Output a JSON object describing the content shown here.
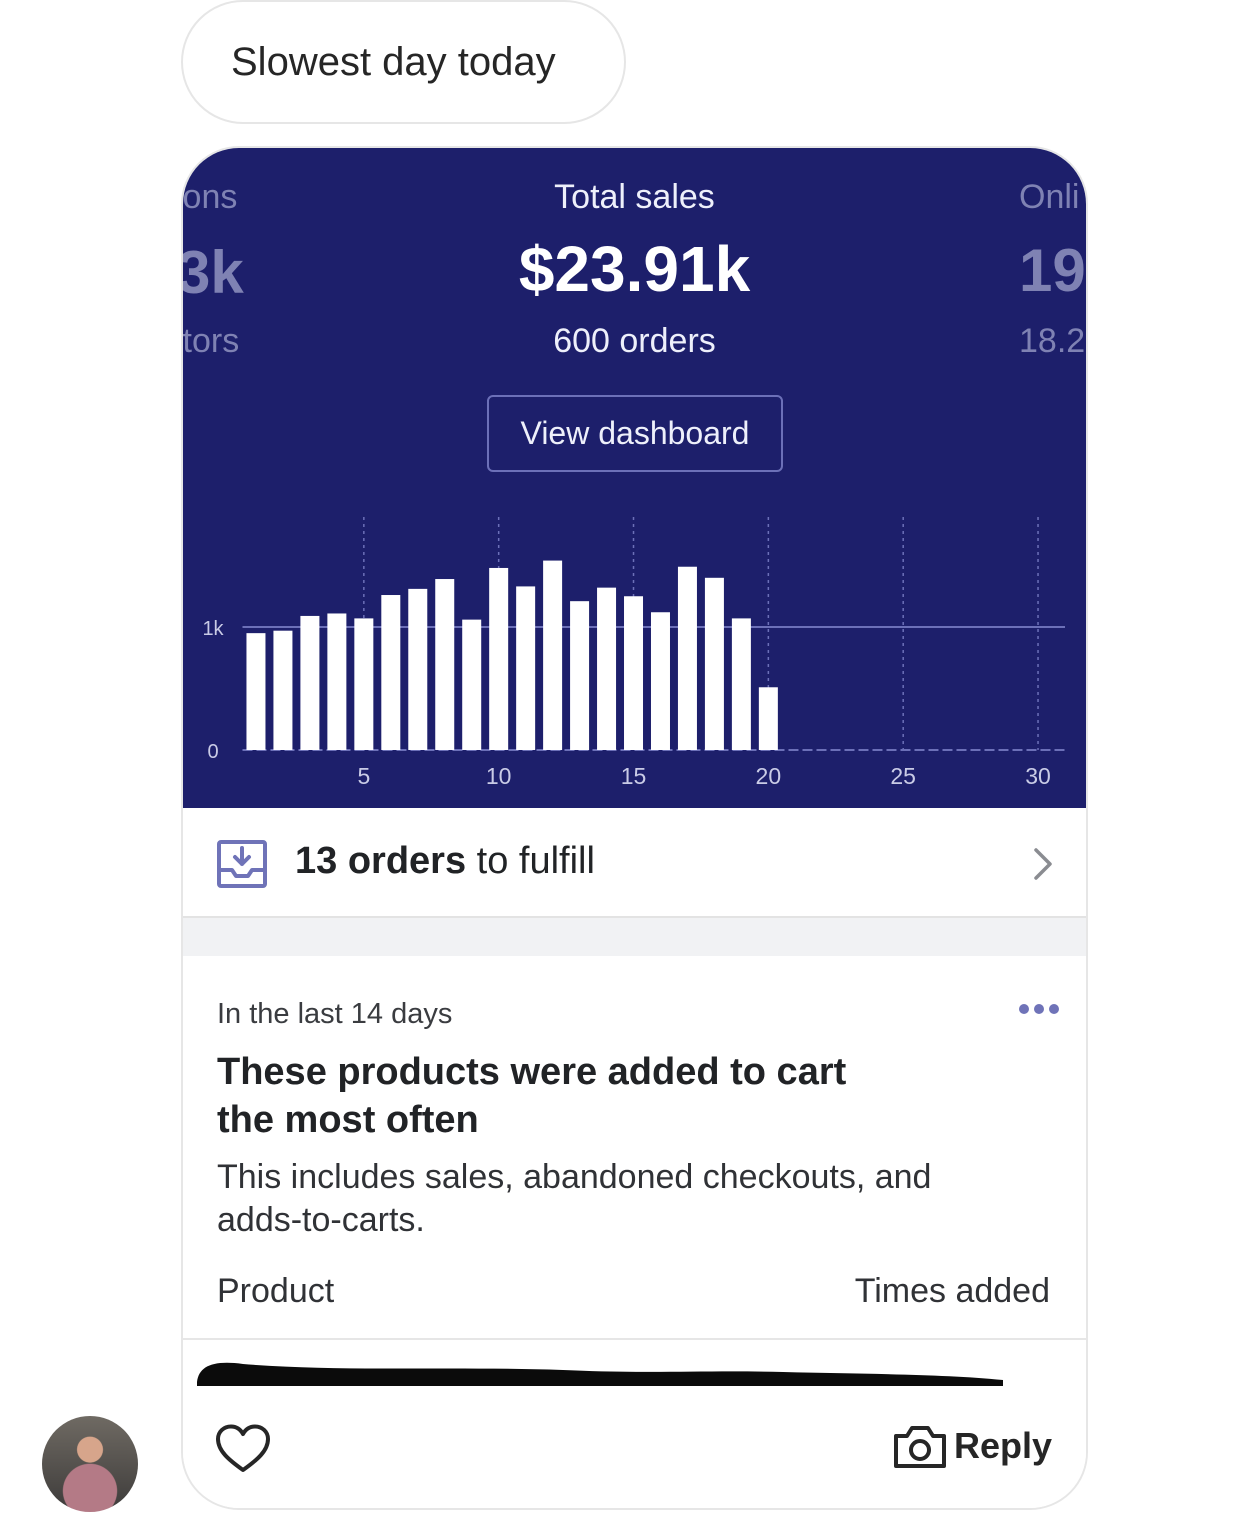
{
  "message": {
    "text": "Slowest day today"
  },
  "stats": {
    "left": {
      "label": "ions",
      "value": "3k",
      "sub": "itors"
    },
    "center": {
      "label": "Total sales",
      "value": "$23.91k",
      "sub": "600 orders"
    },
    "right": {
      "label": "Onli",
      "value": "19",
      "sub": "18.2"
    },
    "button_label": "View dashboard"
  },
  "chart_data": {
    "type": "bar",
    "x": [
      1,
      2,
      3,
      4,
      5,
      6,
      7,
      8,
      9,
      10,
      11,
      12,
      13,
      14,
      15,
      16,
      17,
      18,
      19,
      20
    ],
    "values": [
      950,
      970,
      1090,
      1110,
      1070,
      1260,
      1310,
      1390,
      1060,
      1480,
      1330,
      1540,
      1210,
      1320,
      1250,
      1120,
      1490,
      1400,
      1070,
      510
    ],
    "x_ticks": [
      "5",
      "10",
      "15",
      "20",
      "25",
      "30"
    ],
    "x_tick_values": [
      5,
      10,
      15,
      20,
      25,
      30
    ],
    "y_ticks": [
      "0",
      "1k"
    ],
    "y_tick_values": [
      0,
      1000
    ],
    "xlim": [
      0,
      31
    ],
    "colors": {
      "bar": "#ffffff",
      "background": "#1d1f6b",
      "grid": "#6c70b8",
      "tick": "#c9cbe6"
    }
  },
  "fulfill": {
    "count_text": "13 orders",
    "rest_text": " to fulfill"
  },
  "insight": {
    "period": "In the last 14 days",
    "title_line1": "These products were added to cart",
    "title_line2": "the most often",
    "desc_line1": "This includes sales, abandoned checkouts, and",
    "desc_line2": "adds-to-carts.",
    "col_product": "Product",
    "col_times": "Times added"
  },
  "footer": {
    "reply_label": "Reply"
  },
  "icons": {
    "like": "heart-icon",
    "camera": "camera-icon",
    "more": "more-dots-icon",
    "chevron": "chevron-right-icon",
    "inbox": "inbox-download-icon"
  }
}
